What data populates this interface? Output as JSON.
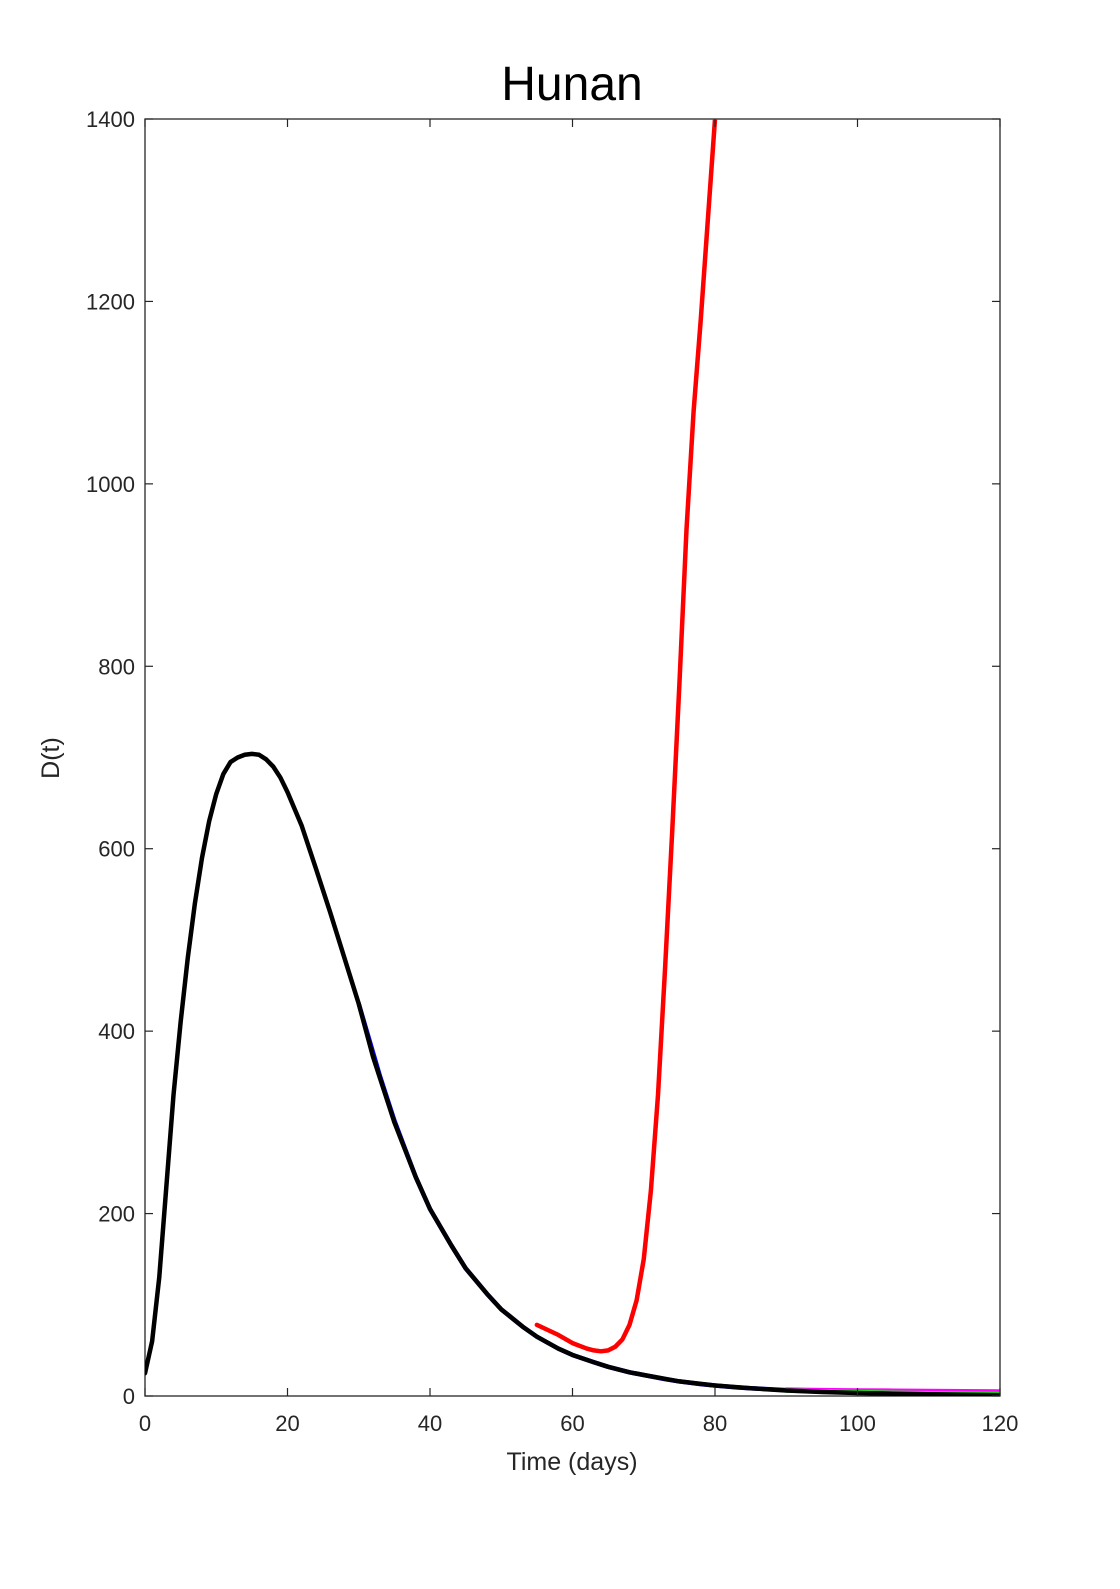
{
  "chart_data": {
    "type": "line",
    "title": "Hunan",
    "xlabel": "Time (days)",
    "ylabel": "D(t)",
    "xlim": [
      0,
      120
    ],
    "ylim": [
      0,
      1400
    ],
    "xticks": [
      0,
      20,
      40,
      60,
      80,
      100,
      120
    ],
    "yticks": [
      0,
      200,
      400,
      600,
      800,
      1000,
      1200,
      1400
    ],
    "grid": false,
    "series": [
      {
        "color": "#ff0000",
        "x": [
          55,
          58,
          60,
          62,
          63,
          64,
          65,
          66,
          67,
          68,
          69,
          70,
          71,
          72,
          73,
          74,
          75,
          76,
          77,
          78,
          79,
          80
        ],
        "y": [
          78,
          67,
          58,
          52,
          50,
          49,
          50,
          54,
          62,
          78,
          105,
          150,
          225,
          330,
          470,
          620,
          780,
          950,
          1080,
          1180,
          1290,
          1400
        ]
      },
      {
        "color": "#0000ff",
        "x": [
          30,
          33,
          35,
          38,
          40,
          43,
          45,
          48,
          50,
          53,
          55,
          58,
          60,
          63,
          65,
          68,
          70,
          73,
          75,
          78,
          80,
          83,
          85,
          88,
          90
        ],
        "y": [
          430,
          350,
          302,
          240,
          205,
          165,
          140,
          112,
          95,
          76,
          65,
          52,
          45,
          37,
          32,
          26,
          23,
          18.5,
          16,
          13,
          11.5,
          9.5,
          8.5,
          7.2,
          6.5
        ]
      },
      {
        "color": "#ff00ff",
        "x": [
          90,
          95,
          100,
          105,
          110,
          115,
          120
        ],
        "y": [
          7.0,
          6.5,
          6.1,
          5.8,
          5.5,
          5.2,
          5.0
        ]
      },
      {
        "color": "#00ff00",
        "x": [
          90,
          95,
          100,
          105,
          110,
          115,
          120
        ],
        "y": [
          6.0,
          5.0,
          4.2,
          3.5,
          3.0,
          2.6,
          2.2
        ]
      },
      {
        "color": "#000000",
        "x": [
          0,
          1,
          2,
          3,
          4,
          5,
          6,
          7,
          8,
          9,
          10,
          11,
          12,
          13,
          14,
          15,
          16,
          17,
          18,
          19,
          20,
          22,
          24,
          26,
          28,
          30,
          32,
          35,
          38,
          40,
          43,
          45,
          48,
          50,
          53,
          55,
          58,
          60,
          63,
          65,
          68,
          70,
          75,
          80,
          85,
          90,
          95,
          100,
          105,
          110,
          115,
          120
        ],
        "y": [
          25,
          60,
          130,
          230,
          330,
          410,
          480,
          540,
          590,
          630,
          660,
          682,
          695,
          700,
          703,
          704,
          703,
          698,
          690,
          678,
          662,
          625,
          578,
          530,
          480,
          430,
          372,
          300,
          240,
          205,
          165,
          140,
          112,
          95,
          76,
          65,
          52,
          45,
          37,
          32,
          26,
          23,
          16,
          11.5,
          8.5,
          6,
          4.4,
          3.3,
          2.5,
          1.9,
          1.4,
          1.0
        ]
      }
    ]
  }
}
